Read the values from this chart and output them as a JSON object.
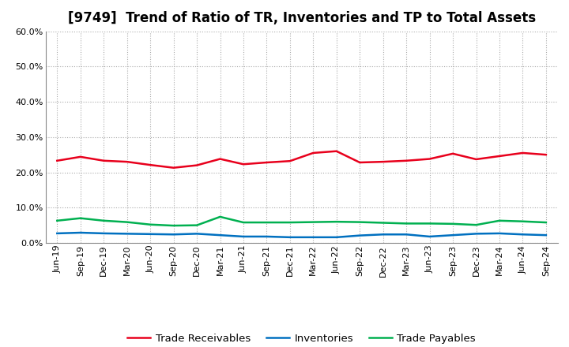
{
  "title": "[9749]  Trend of Ratio of TR, Inventories and TP to Total Assets",
  "x_labels": [
    "Jun-19",
    "Sep-19",
    "Dec-19",
    "Mar-20",
    "Jun-20",
    "Sep-20",
    "Dec-20",
    "Mar-21",
    "Jun-21",
    "Sep-21",
    "Dec-21",
    "Mar-22",
    "Jun-22",
    "Sep-22",
    "Dec-22",
    "Mar-23",
    "Jun-23",
    "Sep-23",
    "Dec-23",
    "Mar-24",
    "Jun-24",
    "Sep-24"
  ],
  "trade_receivables": [
    0.233,
    0.244,
    0.233,
    0.23,
    0.221,
    0.213,
    0.22,
    0.238,
    0.223,
    0.228,
    0.232,
    0.255,
    0.26,
    0.228,
    0.23,
    0.233,
    0.238,
    0.253,
    0.237,
    0.246,
    0.255,
    0.25
  ],
  "inventories": [
    0.027,
    0.029,
    0.027,
    0.026,
    0.025,
    0.024,
    0.026,
    0.022,
    0.018,
    0.018,
    0.016,
    0.016,
    0.016,
    0.021,
    0.024,
    0.024,
    0.018,
    0.022,
    0.026,
    0.027,
    0.024,
    0.022
  ],
  "trade_payables": [
    0.063,
    0.07,
    0.063,
    0.059,
    0.052,
    0.049,
    0.05,
    0.074,
    0.058,
    0.058,
    0.058,
    0.059,
    0.06,
    0.059,
    0.057,
    0.055,
    0.055,
    0.054,
    0.051,
    0.063,
    0.061,
    0.058
  ],
  "color_tr": "#e8001c",
  "color_inv": "#0070c0",
  "color_tp": "#00b050",
  "ylim": [
    0.0,
    0.6
  ],
  "yticks": [
    0.0,
    0.1,
    0.2,
    0.3,
    0.4,
    0.5,
    0.6
  ],
  "legend_labels": [
    "Trade Receivables",
    "Inventories",
    "Trade Payables"
  ],
  "bg_color": "#ffffff",
  "plot_bg_color": "#ffffff",
  "grid_color": "#aaaaaa",
  "title_fontsize": 12,
  "axis_fontsize": 8,
  "legend_fontsize": 9.5
}
